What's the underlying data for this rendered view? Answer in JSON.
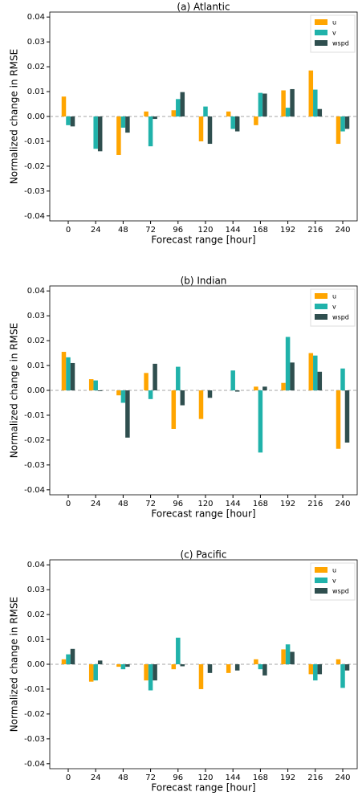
{
  "chart_data": [
    {
      "type": "bar",
      "title": "(a) Atlantic",
      "xlabel": "Forecast range [hour]",
      "ylabel": "Normalized change in RMSE",
      "categories": [
        "0",
        "24",
        "48",
        "72",
        "96",
        "120",
        "144",
        "168",
        "192",
        "216",
        "240"
      ],
      "ylim": [
        -0.042,
        0.042
      ],
      "yticks": [
        -0.04,
        -0.03,
        -0.02,
        -0.01,
        {
          "value": 0,
          "label": "0.00"
        },
        0.01,
        0.02,
        0.03,
        0.04
      ],
      "legend": "upper right",
      "series": [
        {
          "name": "u",
          "color": "#ffa500",
          "values": [
            0.008,
            0,
            -0.0155,
            0.002,
            0.0025,
            -0.01,
            0.002,
            -0.0035,
            0.0105,
            0.0185,
            -0.011
          ]
        },
        {
          "name": "v",
          "color": "#20b2aa",
          "values": [
            -0.0035,
            -0.013,
            -0.0045,
            -0.012,
            0.007,
            0.004,
            -0.005,
            0.0095,
            0.0035,
            0.0108,
            -0.006
          ]
        },
        {
          "name": "wspd",
          "color": "#2f4f4f",
          "values": [
            -0.004,
            -0.014,
            -0.0065,
            -0.001,
            0.0098,
            -0.011,
            -0.006,
            0.0092,
            0.011,
            0.003,
            -0.005
          ]
        }
      ]
    },
    {
      "type": "bar",
      "title": "(b) Indian",
      "xlabel": "Forecast range [hour]",
      "ylabel": "Normalized change in RMSE",
      "categories": [
        "0",
        "24",
        "48",
        "72",
        "96",
        "120",
        "144",
        "168",
        "192",
        "216",
        "240"
      ],
      "ylim": [
        -0.042,
        0.042
      ],
      "yticks": [
        -0.04,
        -0.03,
        -0.02,
        -0.01,
        {
          "value": 0,
          "label": "0.00"
        },
        0.01,
        0.02,
        0.03,
        0.04
      ],
      "legend": "upper right",
      "series": [
        {
          "name": "u",
          "color": "#ffa500",
          "values": [
            0.0155,
            0.0045,
            -0.002,
            0.007,
            -0.0155,
            -0.0115,
            0,
            0.0015,
            0.003,
            0.015,
            -0.0235
          ]
        },
        {
          "name": "v",
          "color": "#20b2aa",
          "values": [
            0.0133,
            0.004,
            -0.005,
            -0.0035,
            0.0095,
            0,
            0.008,
            -0.025,
            0.0215,
            0.014,
            0.0088
          ]
        },
        {
          "name": "wspd",
          "color": "#2f4f4f",
          "values": [
            0.011,
            -0.0003,
            -0.019,
            0.0107,
            -0.006,
            -0.003,
            -0.0005,
            0.0015,
            0.0112,
            0.0075,
            -0.021
          ]
        }
      ]
    },
    {
      "type": "bar",
      "title": "(c) Pacific",
      "xlabel": "Forecast range [hour]",
      "ylabel": "Normalized change in RMSE",
      "categories": [
        "0",
        "24",
        "48",
        "72",
        "96",
        "120",
        "144",
        "168",
        "192",
        "216",
        "240"
      ],
      "ylim": [
        -0.042,
        0.042
      ],
      "yticks": [
        -0.04,
        -0.03,
        -0.02,
        -0.01,
        {
          "value": 0,
          "label": "0.00"
        },
        0.01,
        0.02,
        0.03,
        0.04
      ],
      "legend": "upper right",
      "series": [
        {
          "name": "u",
          "color": "#ffa500",
          "values": [
            0.002,
            -0.007,
            -0.001,
            -0.0065,
            -0.002,
            -0.01,
            -0.0035,
            0.002,
            0.006,
            -0.004,
            0.002
          ]
        },
        {
          "name": "v",
          "color": "#20b2aa",
          "values": [
            0.004,
            -0.0065,
            -0.002,
            -0.0105,
            0.0107,
            0,
            0,
            -0.002,
            0.008,
            -0.0065,
            -0.0095
          ]
        },
        {
          "name": "wspd",
          "color": "#2f4f4f",
          "values": [
            0.0062,
            0.0015,
            -0.001,
            -0.0065,
            -0.0008,
            -0.0035,
            -0.0025,
            -0.0045,
            0.005,
            -0.004,
            -0.0025
          ]
        }
      ]
    }
  ]
}
